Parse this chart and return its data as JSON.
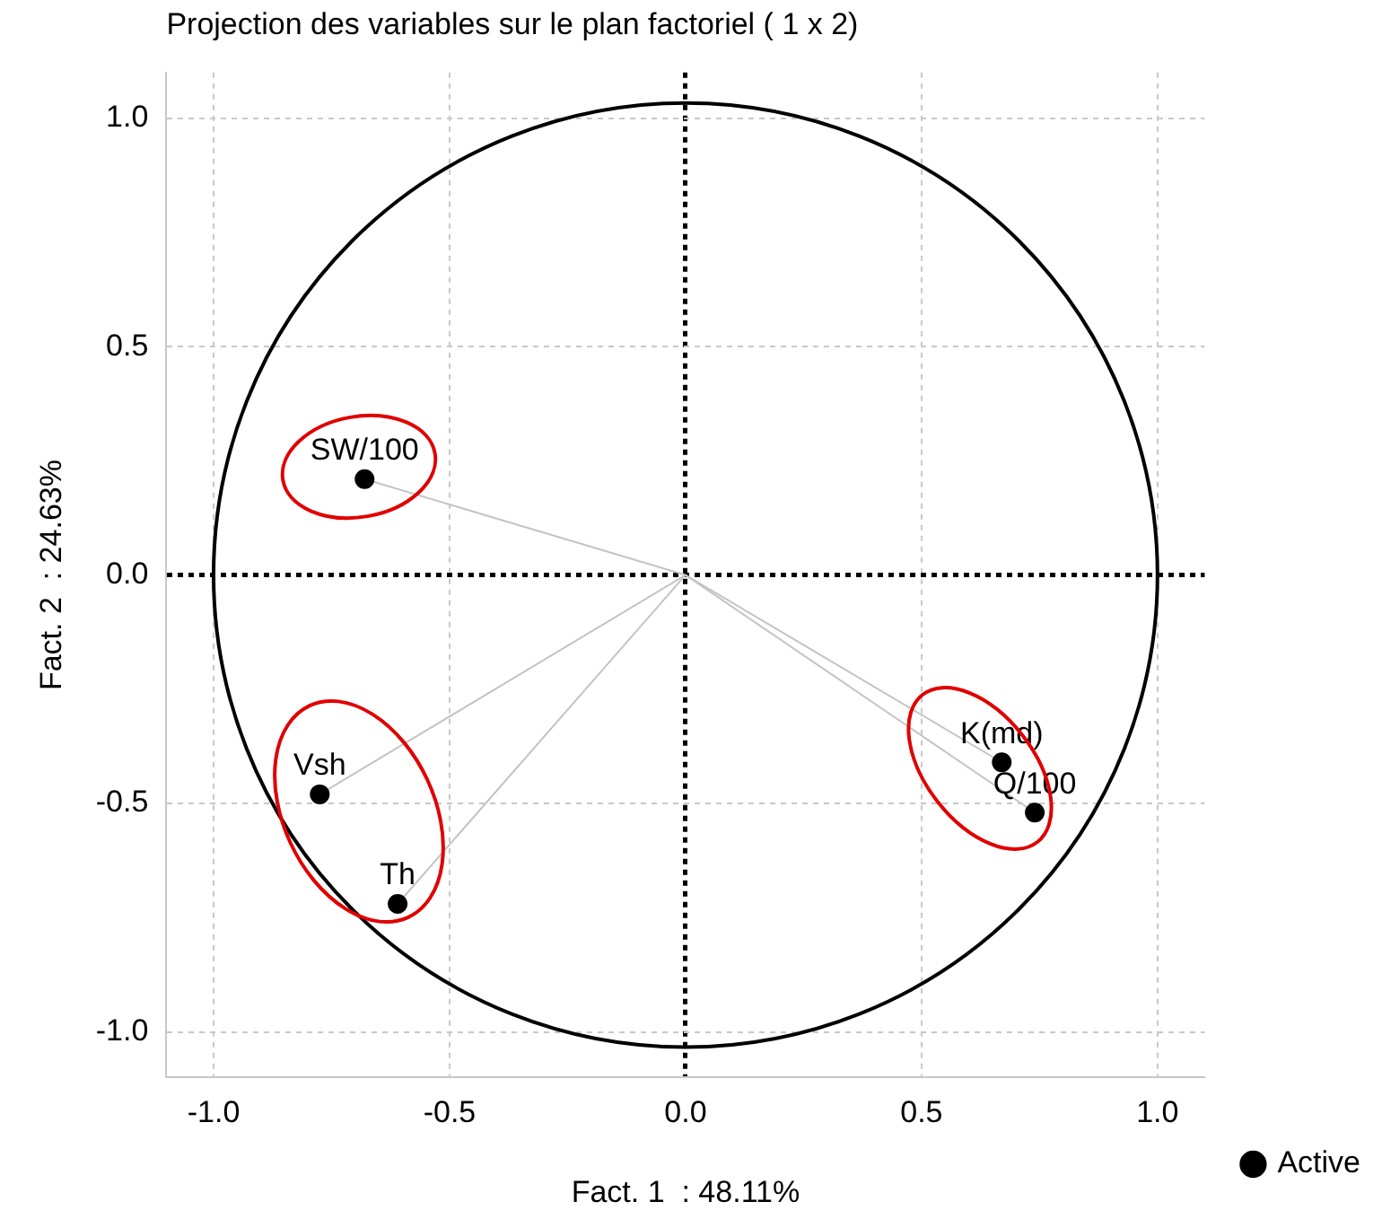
{
  "chart_data": {
    "type": "scatter",
    "title": "Projection des variables sur le plan factoriel ( 1 x 2)",
    "xlabel": "Fact. 1  : 48.11%",
    "ylabel": "Fact. 2  : 24.63%",
    "series": [
      {
        "name": "Active",
        "color": "#000000",
        "x": [
          -0.68,
          -0.775,
          -0.61,
          0.67,
          0.74
        ],
        "values": [
          0.21,
          -0.48,
          -0.72,
          -0.41,
          -0.52
        ]
      }
    ],
    "annotations": [
      {
        "text": "SW/100",
        "x": -0.68,
        "y": 0.21
      },
      {
        "text": "Vsh",
        "x": -0.775,
        "y": -0.48
      },
      {
        "text": "Th",
        "x": -0.61,
        "y": -0.72
      },
      {
        "text": "K(md)",
        "x": 0.67,
        "y": -0.41
      },
      {
        "text": "Q/100",
        "x": 0.74,
        "y": -0.52
      }
    ],
    "xlim": [
      -1.1,
      1.1
    ],
    "ylim": [
      -1.1,
      1.1
    ],
    "xticks": [
      {
        "value": -1,
        "label": "-1.0"
      },
      {
        "value": -0.5,
        "label": "-0.5"
      },
      {
        "value": 0,
        "label": "0.0"
      },
      {
        "value": 0.5,
        "label": "0.5"
      },
      {
        "value": 1,
        "label": "1.0"
      }
    ],
    "yticks": [
      {
        "value": -1,
        "label": "-1.0"
      },
      {
        "value": -0.5,
        "label": "-0.5"
      },
      {
        "value": 0,
        "label": "0.0"
      },
      {
        "value": 0.5,
        "label": "0.5"
      },
      {
        "value": 1,
        "label": "1.0"
      }
    ],
    "grid": true,
    "legend": "bottom right",
    "marker": "circle"
  }
}
